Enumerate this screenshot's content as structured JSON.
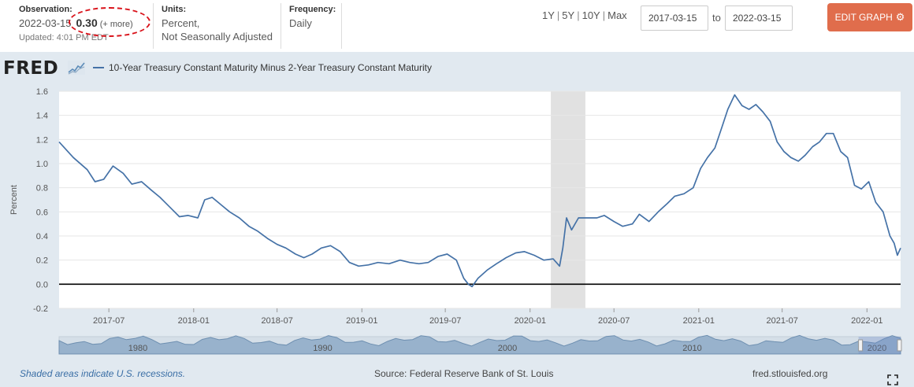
{
  "meta": {
    "observation_label": "Observation:",
    "observation_date": "2022-03-15",
    "observation_value": "0.30",
    "observation_more": "(+ more)",
    "updated": "Updated: 4:01 PM EDT",
    "units_label": "Units:",
    "units_line1": "Percent,",
    "units_line2": "Not Seasonally Adjusted",
    "frequency_label": "Frequency:",
    "frequency_value": "Daily",
    "highlight_color": "#d9121a"
  },
  "range_links": [
    "1Y",
    "5Y",
    "10Y",
    "Max"
  ],
  "date_range": {
    "start": "2017-03-15",
    "to_label": "to",
    "end": "2022-03-15"
  },
  "edit_button": {
    "label": "EDIT GRAPH",
    "icon": "gear-icon",
    "color": "#e06d4c"
  },
  "logo": {
    "text": "FRED"
  },
  "footer": {
    "recession_note": "Shaded areas indicate U.S. recessions.",
    "source": "Source: Federal Reserve Bank of St. Louis",
    "site": "fred.stlouisfed.org"
  },
  "navigator": {
    "labels": [
      "1980",
      "1990",
      "2000",
      "2010",
      "2020"
    ],
    "selection_start": 0.95,
    "selection_end": 1.0
  },
  "chart_data": {
    "type": "line",
    "series": [
      {
        "name": "10-Year Treasury Constant Maturity Minus 2-Year Treasury Constant Maturity",
        "color": "#4572a7",
        "x": [
          "2017-03-15",
          "2017-04-15",
          "2017-05-15",
          "2017-06-01",
          "2017-06-20",
          "2017-07-10",
          "2017-08-01",
          "2017-08-20",
          "2017-09-10",
          "2017-10-01",
          "2017-10-20",
          "2017-11-10",
          "2017-12-01",
          "2017-12-20",
          "2018-01-10",
          "2018-01-25",
          "2018-02-10",
          "2018-03-01",
          "2018-03-20",
          "2018-04-10",
          "2018-05-01",
          "2018-05-20",
          "2018-06-10",
          "2018-07-01",
          "2018-07-20",
          "2018-08-10",
          "2018-08-28",
          "2018-09-15",
          "2018-10-05",
          "2018-10-25",
          "2018-11-15",
          "2018-12-05",
          "2018-12-25",
          "2019-01-15",
          "2019-02-05",
          "2019-03-01",
          "2019-03-25",
          "2019-04-15",
          "2019-05-05",
          "2019-05-25",
          "2019-06-15",
          "2019-07-05",
          "2019-07-25",
          "2019-08-10",
          "2019-08-20",
          "2019-08-28",
          "2019-09-10",
          "2019-10-01",
          "2019-10-20",
          "2019-11-10",
          "2019-12-01",
          "2019-12-20",
          "2020-01-10",
          "2020-01-31",
          "2020-02-20",
          "2020-03-05",
          "2020-03-12",
          "2020-03-20",
          "2020-03-31",
          "2020-04-15",
          "2020-05-05",
          "2020-05-25",
          "2020-06-10",
          "2020-07-01",
          "2020-07-20",
          "2020-08-10",
          "2020-08-25",
          "2020-09-15",
          "2020-10-05",
          "2020-10-25",
          "2020-11-10",
          "2020-11-30",
          "2020-12-20",
          "2021-01-05",
          "2021-01-20",
          "2021-02-05",
          "2021-02-20",
          "2021-03-05",
          "2021-03-20",
          "2021-04-05",
          "2021-04-20",
          "2021-05-05",
          "2021-05-20",
          "2021-06-05",
          "2021-06-20",
          "2021-07-05",
          "2021-07-20",
          "2021-08-05",
          "2021-08-20",
          "2021-09-05",
          "2021-09-20",
          "2021-10-05",
          "2021-10-20",
          "2021-11-05",
          "2021-11-20",
          "2021-12-05",
          "2021-12-20",
          "2022-01-05",
          "2022-01-20",
          "2022-02-05",
          "2022-02-20",
          "2022-03-01",
          "2022-03-08",
          "2022-03-15"
        ],
        "y": [
          1.18,
          1.05,
          0.95,
          0.85,
          0.87,
          0.98,
          0.92,
          0.83,
          0.85,
          0.78,
          0.72,
          0.64,
          0.56,
          0.57,
          0.55,
          0.7,
          0.72,
          0.66,
          0.6,
          0.55,
          0.48,
          0.44,
          0.38,
          0.33,
          0.3,
          0.25,
          0.22,
          0.25,
          0.3,
          0.32,
          0.27,
          0.18,
          0.15,
          0.16,
          0.18,
          0.17,
          0.2,
          0.18,
          0.17,
          0.18,
          0.23,
          0.25,
          0.2,
          0.05,
          0.0,
          -0.02,
          0.05,
          0.12,
          0.17,
          0.22,
          0.26,
          0.27,
          0.24,
          0.2,
          0.21,
          0.15,
          0.3,
          0.55,
          0.45,
          0.55,
          0.55,
          0.55,
          0.57,
          0.52,
          0.48,
          0.5,
          0.58,
          0.52,
          0.6,
          0.67,
          0.73,
          0.75,
          0.8,
          0.96,
          1.05,
          1.13,
          1.3,
          1.45,
          1.57,
          1.48,
          1.45,
          1.49,
          1.43,
          1.35,
          1.18,
          1.1,
          1.05,
          1.02,
          1.07,
          1.14,
          1.18,
          1.25,
          1.25,
          1.1,
          1.05,
          0.82,
          0.79,
          0.85,
          0.68,
          0.6,
          0.4,
          0.34,
          0.24,
          0.3
        ]
      }
    ],
    "ylabel": "Percent",
    "xlabel": "",
    "ylim": [
      -0.2,
      1.6
    ],
    "yticks": [
      -0.2,
      0.0,
      0.2,
      0.4,
      0.6,
      0.8,
      1.0,
      1.2,
      1.4,
      1.6
    ],
    "ytick_labels": [
      "-0.2",
      "0.0",
      "0.2",
      "0.4",
      "0.6",
      "0.8",
      "1.0",
      "1.2",
      "1.4",
      "1.6"
    ],
    "xlim": [
      "2017-03-15",
      "2022-03-15"
    ],
    "xticks": [
      "2017-07-01",
      "2018-01-01",
      "2018-07-01",
      "2019-01-01",
      "2019-07-01",
      "2020-01-01",
      "2020-07-01",
      "2021-01-01",
      "2021-07-01",
      "2022-01-01"
    ],
    "xtick_labels": [
      "2017-07",
      "2018-01",
      "2018-07",
      "2019-01",
      "2019-07",
      "2020-01",
      "2020-07",
      "2021-01",
      "2021-07",
      "2022-01"
    ],
    "recessions": [
      {
        "start": "2020-02-15",
        "end": "2020-04-30"
      }
    ],
    "zero_line": true,
    "grid": "horizontal"
  }
}
